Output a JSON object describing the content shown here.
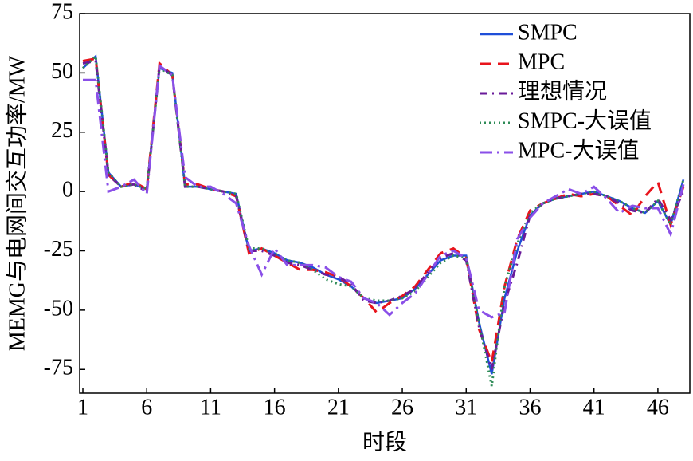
{
  "chart_data": {
    "type": "line",
    "xlabel": "时段",
    "ylabel": "MEMG与电网间交互功率/MW",
    "x": [
      1,
      2,
      3,
      4,
      5,
      6,
      7,
      8,
      9,
      10,
      11,
      12,
      13,
      14,
      15,
      16,
      17,
      18,
      19,
      20,
      21,
      22,
      23,
      24,
      25,
      26,
      27,
      28,
      29,
      30,
      31,
      32,
      33,
      34,
      35,
      36,
      37,
      38,
      39,
      40,
      41,
      42,
      43,
      44,
      45,
      46,
      47,
      48
    ],
    "xlim": [
      0.75,
      48.5
    ],
    "xticks": [
      1,
      6,
      11,
      16,
      21,
      26,
      31,
      36,
      41,
      46
    ],
    "ylim": [
      -85,
      75
    ],
    "yticks": [
      -75,
      -50,
      -25,
      0,
      25,
      50,
      75
    ],
    "legend": "upper right",
    "series": [
      {
        "name": "SMPC",
        "color": "#1f4fd8",
        "style": "solid",
        "values": [
          52,
          57,
          8,
          2,
          3,
          1,
          52,
          50,
          2,
          2,
          1,
          0,
          -1,
          -25,
          -24,
          -26,
          -29,
          -30,
          -32,
          -35,
          -37,
          -40,
          -45,
          -47,
          -46,
          -45,
          -41,
          -35,
          -29,
          -27,
          -27,
          -55,
          -77,
          -45,
          -25,
          -10,
          -5,
          -3,
          -2,
          -1,
          0,
          -2,
          -4,
          -7,
          -9,
          -4,
          -14,
          5
        ]
      },
      {
        "name": "MPC",
        "color": "#e8141c",
        "style": "dashed",
        "values": [
          55,
          56,
          7,
          2,
          4,
          1,
          54,
          49,
          3,
          3,
          1,
          0,
          -2,
          -26,
          -24,
          -27,
          -30,
          -33,
          -33,
          -34,
          -36,
          -40,
          -45,
          -51,
          -47,
          -44,
          -40,
          -33,
          -26,
          -24,
          -28,
          -58,
          -72,
          -40,
          -20,
          -8,
          -5,
          -3,
          -1,
          -2,
          -1,
          -2,
          -6,
          -10,
          -2,
          4,
          -14,
          2
        ]
      },
      {
        "name": "理想情况",
        "color": "#6a1b9a",
        "style": "dashdot",
        "values": [
          54,
          55,
          7,
          2,
          3,
          0,
          53,
          49,
          2,
          2,
          1,
          0,
          -2,
          -25,
          -25,
          -27,
          -30,
          -31,
          -33,
          -35,
          -36,
          -39,
          -46,
          -47,
          -46,
          -44,
          -41,
          -34,
          -28,
          -26,
          -29,
          -57,
          -75,
          -47,
          -30,
          -10,
          -5,
          -3,
          -2,
          -1,
          -1,
          -2,
          -5,
          -8,
          -9,
          -3,
          -12,
          0
        ]
      },
      {
        "name": "SMPC-大误值",
        "color": "#2e8b57",
        "style": "dotted",
        "values": [
          52,
          57,
          8,
          2,
          3,
          1,
          52,
          49,
          2,
          2,
          1,
          0,
          -1,
          -24,
          -24,
          -26,
          -29,
          -30,
          -33,
          -37,
          -39,
          -40,
          -45,
          -46,
          -46,
          -45,
          -42,
          -36,
          -30,
          -27,
          -28,
          -55,
          -82,
          -40,
          -22,
          -9,
          -5,
          -3,
          -2,
          -1,
          0,
          -2,
          -4,
          -7,
          -9,
          -4,
          -14,
          5
        ]
      },
      {
        "name": "MPC-大误值",
        "color": "#8a4fe8",
        "style": "longdashdot",
        "values": [
          47,
          47,
          0,
          2,
          5,
          -1,
          53,
          49,
          6,
          2,
          2,
          -1,
          -5,
          -23,
          -35,
          -24,
          -31,
          -31,
          -31,
          -32,
          -36,
          -38,
          -45,
          -47,
          -52,
          -47,
          -43,
          -35,
          -27,
          -25,
          -28,
          -50,
          -53,
          -51,
          -20,
          -11,
          -5,
          -2,
          1,
          -1,
          2,
          -3,
          -9,
          -6,
          -7,
          -7,
          -18,
          3
        ]
      }
    ]
  }
}
